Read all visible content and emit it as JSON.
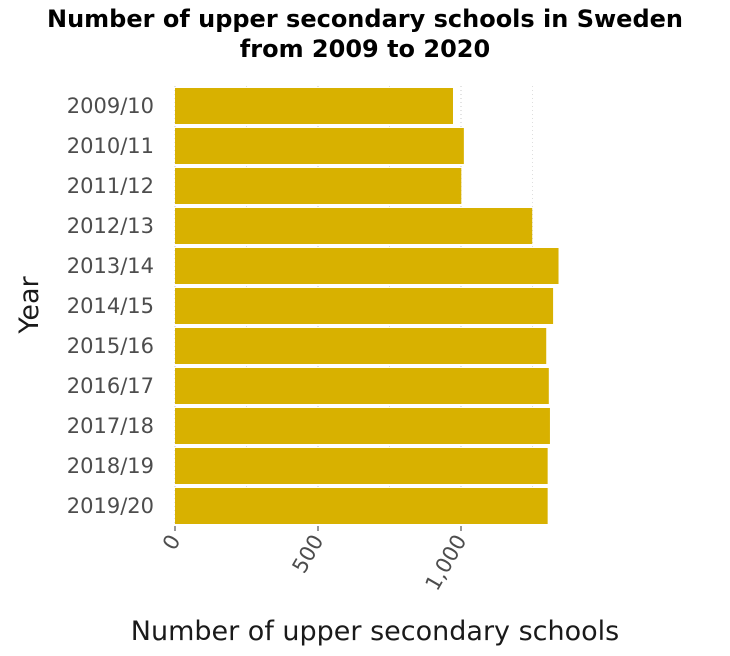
{
  "chart_data": {
    "type": "bar",
    "orientation": "horizontal",
    "title_lines": [
      "Number of upper secondary schools in Sweden",
      "from 2009 to 2020"
    ],
    "xlabel": "Number of upper secondary schools",
    "ylabel": "Year",
    "categories": [
      "2009/10",
      "2010/11",
      "2011/12",
      "2012/13",
      "2013/14",
      "2014/15",
      "2015/16",
      "2016/17",
      "2017/18",
      "2018/19",
      "2019/20"
    ],
    "values": [
      972,
      1010,
      1001,
      1249,
      1341,
      1322,
      1298,
      1307,
      1311,
      1303,
      1303
    ],
    "x_ticks": [
      0,
      500,
      1000
    ],
    "x_tick_labels": [
      "0",
      "500",
      "1,000"
    ],
    "xlim": [
      0,
      1350
    ],
    "bar_color": "#d8b100",
    "grid_color": "#c8c8c8",
    "grid": true,
    "legend": "none"
  }
}
